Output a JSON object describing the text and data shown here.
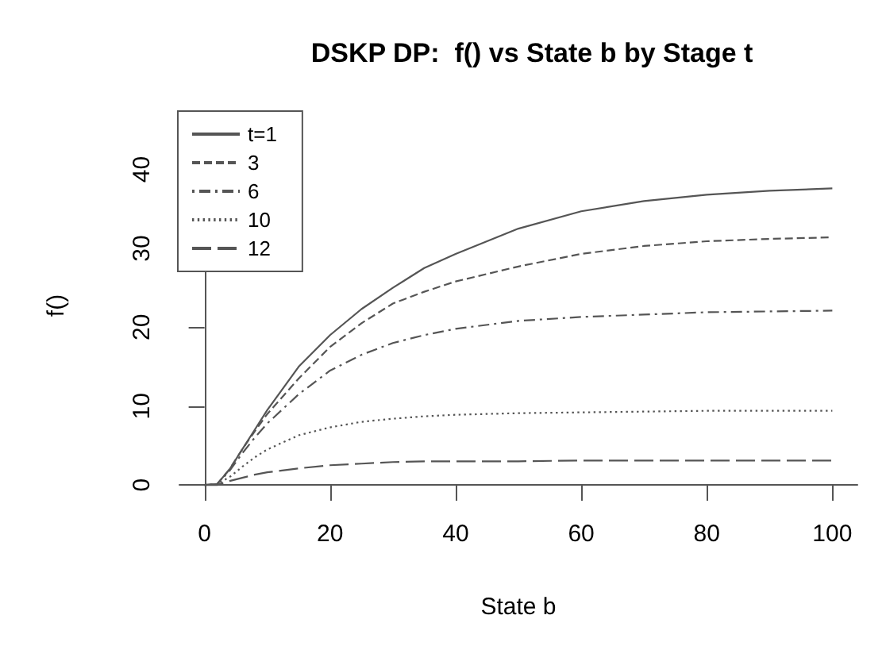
{
  "chart_data": {
    "type": "line",
    "title": "DSKP DP:  f() vs State b by Stage t",
    "xlabel": "State b",
    "ylabel": "f()",
    "x": [
      0,
      2,
      4,
      6,
      8,
      10,
      15,
      20,
      25,
      30,
      35,
      40,
      50,
      60,
      70,
      80,
      90,
      100
    ],
    "series": [
      {
        "name": "t=1",
        "color": "#555555",
        "line_style": "solid",
        "values": [
          0,
          0.1,
          2,
          4.5,
          7,
          9.5,
          15,
          19,
          22.3,
          25,
          27.5,
          29.3,
          32.5,
          34.7,
          36,
          36.8,
          37.3,
          37.6
        ]
      },
      {
        "name": "3",
        "color": "#555555",
        "line_style": "dashed",
        "values": [
          0,
          0.1,
          2,
          4.5,
          6.8,
          9,
          13.5,
          17.5,
          20.5,
          23,
          24.5,
          25.8,
          27.7,
          29.3,
          30.3,
          30.9,
          31.2,
          31.4
        ]
      },
      {
        "name": "6",
        "color": "#555555",
        "line_style": "dashdot",
        "values": [
          0,
          0.1,
          1.8,
          4,
          6,
          7.8,
          11.5,
          14.5,
          16.5,
          18,
          19,
          19.8,
          20.8,
          21.3,
          21.6,
          21.9,
          22,
          22.1
        ]
      },
      {
        "name": "10",
        "color": "#555555",
        "line_style": "dotted",
        "values": [
          0,
          0.1,
          1,
          2.3,
          3.5,
          4.5,
          6.3,
          7.3,
          8,
          8.4,
          8.7,
          8.9,
          9.1,
          9.2,
          9.3,
          9.4,
          9.4,
          9.4
        ]
      },
      {
        "name": "12",
        "color": "#555555",
        "line_style": "longdash",
        "values": [
          0,
          0,
          0.5,
          0.9,
          1.3,
          1.6,
          2.1,
          2.5,
          2.7,
          2.9,
          3,
          3,
          3,
          3.1,
          3.1,
          3.1,
          3.1,
          3.1
        ]
      }
    ],
    "xlim": [
      -4,
      104
    ],
    "xticks": [
      0,
      20,
      40,
      60,
      80,
      100
    ],
    "ylim": [
      -1.5,
      47
    ],
    "yticks": [
      0,
      10,
      20,
      30,
      40
    ],
    "grid": false,
    "legend": "top left",
    "marker": "none"
  }
}
